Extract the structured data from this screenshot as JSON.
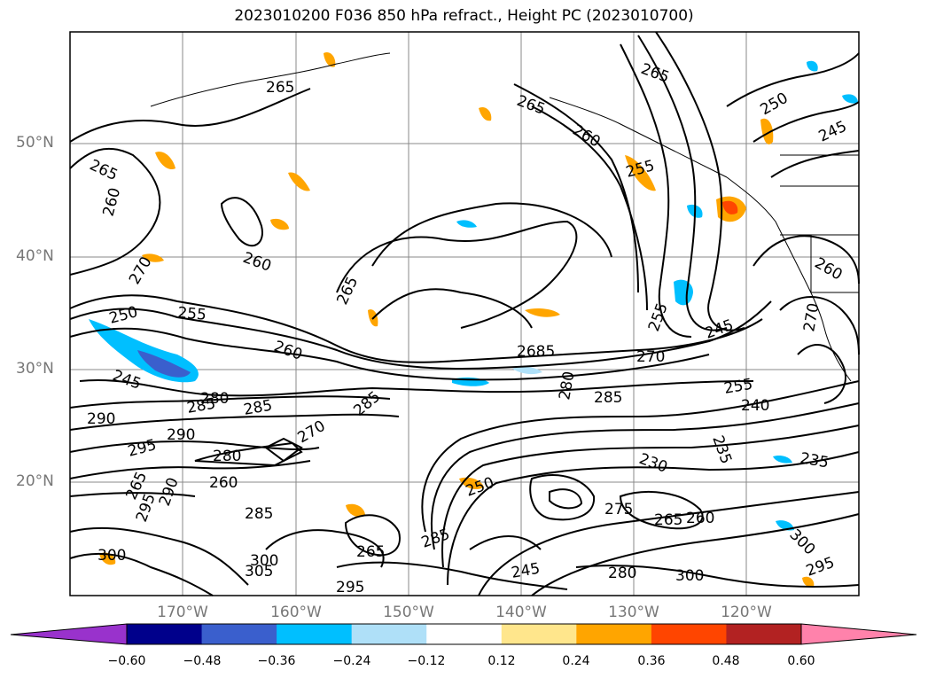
{
  "title": "2023010200 F036 850 hPa refract., Height PC (2023010700)",
  "map": {
    "lat_labels": [
      "50°N",
      "40°N",
      "30°N",
      "20°N"
    ],
    "lon_labels": [
      "170°W",
      "160°W",
      "150°W",
      "140°W",
      "130°W",
      "120°W"
    ],
    "contour_labels": [
      {
        "text": "265"
      },
      {
        "text": "265"
      },
      {
        "text": "265"
      },
      {
        "text": "260"
      },
      {
        "text": "255"
      },
      {
        "text": "250"
      },
      {
        "text": "245"
      },
      {
        "text": "265"
      },
      {
        "text": "260"
      },
      {
        "text": "260"
      },
      {
        "text": "270"
      },
      {
        "text": "250"
      },
      {
        "text": "255"
      },
      {
        "text": "260"
      },
      {
        "text": "245"
      },
      {
        "text": "265"
      },
      {
        "text": "260"
      },
      {
        "text": "280"
      },
      {
        "text": "285"
      },
      {
        "text": "285"
      },
      {
        "text": "290"
      },
      {
        "text": "290"
      },
      {
        "text": "295"
      },
      {
        "text": "285"
      },
      {
        "text": "285"
      },
      {
        "text": "270"
      },
      {
        "text": "255"
      },
      {
        "text": "245"
      },
      {
        "text": "240"
      },
      {
        "text": "230"
      },
      {
        "text": "235"
      },
      {
        "text": "235"
      },
      {
        "text": "260"
      },
      {
        "text": "265"
      },
      {
        "text": "275"
      },
      {
        "text": "285"
      },
      {
        "text": "265"
      },
      {
        "text": "300"
      },
      {
        "text": "305"
      },
      {
        "text": "295"
      },
      {
        "text": "245"
      },
      {
        "text": "280"
      },
      {
        "text": "300"
      },
      {
        "text": "295"
      },
      {
        "text": "300"
      },
      {
        "text": "270"
      },
      {
        "text": "2685"
      },
      {
        "text": "280"
      },
      {
        "text": "260"
      },
      {
        "text": "250"
      },
      {
        "text": "255"
      },
      {
        "text": "265"
      },
      {
        "text": "280"
      },
      {
        "text": "285"
      },
      {
        "text": "295"
      },
      {
        "text": "290"
      },
      {
        "text": "300"
      },
      {
        "text": "270"
      }
    ]
  },
  "colorbar": {
    "ticks": [
      "−0.60",
      "−0.48",
      "−0.36",
      "−0.24",
      "−0.12",
      "0.12",
      "0.24",
      "0.36",
      "0.48",
      "0.60"
    ],
    "colors": [
      "#9932cc",
      "#00008b",
      "#3a5fcd",
      "#00bfff",
      "#afe0f8",
      "#ffffff",
      "#ffe68c",
      "#ffa500",
      "#ff4500",
      "#b22222",
      "#ff82ab"
    ]
  }
}
